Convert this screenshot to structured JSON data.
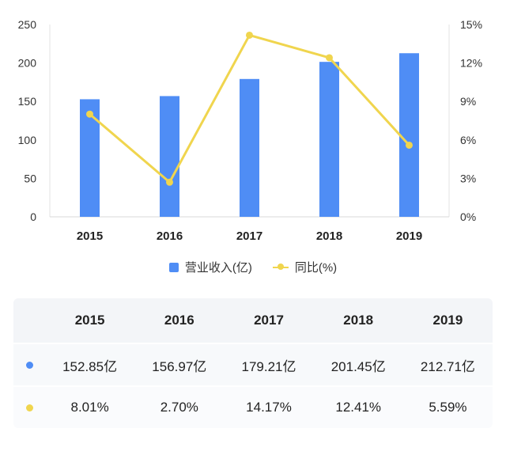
{
  "chart_data": {
    "type": "bar+line",
    "categories": [
      "2015",
      "2016",
      "2017",
      "2018",
      "2019"
    ],
    "series": [
      {
        "name": "营业收入(亿)",
        "type": "bar",
        "axis": "left",
        "color": "#4f8df5",
        "values": [
          152.85,
          156.97,
          179.21,
          201.45,
          212.71
        ]
      },
      {
        "name": "同比(%)",
        "type": "line",
        "axis": "right",
        "color": "#f0d54e",
        "values": [
          8.01,
          2.7,
          14.17,
          12.41,
          5.59
        ]
      }
    ],
    "left_axis": {
      "min": 0,
      "max": 250,
      "ticks": [
        "0",
        "50",
        "100",
        "150",
        "200",
        "250"
      ]
    },
    "right_axis": {
      "min": 0,
      "max": 15,
      "ticks": [
        "0%",
        "3%",
        "6%",
        "9%",
        "12%",
        "15%"
      ]
    }
  },
  "legend": {
    "revenue": "营业收入(亿)",
    "growth": "同比(%)"
  },
  "table": {
    "headers": [
      "2015",
      "2016",
      "2017",
      "2018",
      "2019"
    ],
    "revenue_row": [
      "152.85亿",
      "156.97亿",
      "179.21亿",
      "201.45亿",
      "212.71亿"
    ],
    "growth_row": [
      "8.01%",
      "2.70%",
      "14.17%",
      "12.41%",
      "5.59%"
    ]
  }
}
